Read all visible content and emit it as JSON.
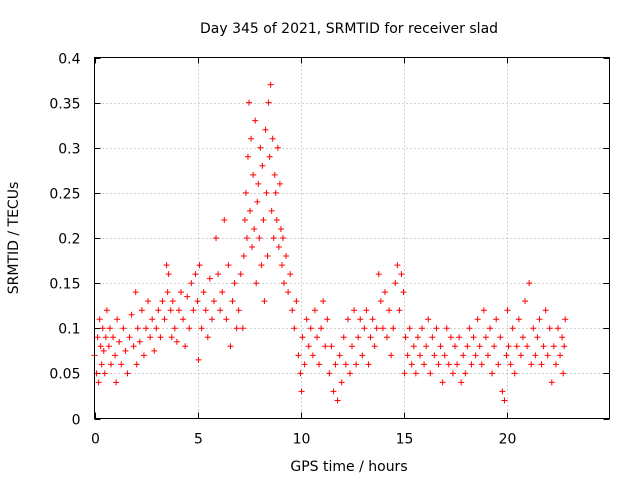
{
  "chart_data": {
    "type": "scatter",
    "title": "Day 345 of 2021, SRMTID for receiver slad",
    "xlabel": "GPS time / hours",
    "ylabel": "SRMTID / TECUs",
    "xlim": [
      0,
      25
    ],
    "ylim": [
      0,
      0.4
    ],
    "xticks": [
      0,
      5,
      10,
      15,
      20
    ],
    "xtick_labels": [
      "0",
      "5",
      "10",
      "15",
      "20"
    ],
    "yticks": [
      0,
      0.05,
      0.1,
      0.15,
      0.2,
      0.25,
      0.3,
      0.35,
      0.4
    ],
    "ytick_labels": [
      "0",
      "0.05",
      "0.1",
      "0.15",
      "0.2",
      "0.25",
      "0.3",
      "0.35",
      "0.4"
    ],
    "grid": true,
    "marker": "+",
    "marker_color": "#ff0000",
    "series": [
      {
        "name": "SRMTID",
        "points": [
          [
            0.0,
            0.07
          ],
          [
            0.1,
            0.05
          ],
          [
            0.15,
            0.09
          ],
          [
            0.2,
            0.04
          ],
          [
            0.25,
            0.11
          ],
          [
            0.3,
            0.08
          ],
          [
            0.35,
            0.06
          ],
          [
            0.4,
            0.1
          ],
          [
            0.45,
            0.075
          ],
          [
            0.5,
            0.05
          ],
          [
            0.55,
            0.09
          ],
          [
            0.6,
            0.12
          ],
          [
            0.7,
            0.08
          ],
          [
            0.75,
            0.1
          ],
          [
            0.8,
            0.06
          ],
          [
            0.9,
            0.09
          ],
          [
            1.0,
            0.07
          ],
          [
            1.05,
            0.04
          ],
          [
            1.1,
            0.11
          ],
          [
            1.2,
            0.085
          ],
          [
            1.3,
            0.06
          ],
          [
            1.4,
            0.1
          ],
          [
            1.5,
            0.075
          ],
          [
            1.6,
            0.05
          ],
          [
            1.7,
            0.09
          ],
          [
            1.8,
            0.115
          ],
          [
            1.9,
            0.08
          ],
          [
            2.0,
            0.14
          ],
          [
            2.05,
            0.06
          ],
          [
            2.1,
            0.1
          ],
          [
            2.2,
            0.085
          ],
          [
            2.3,
            0.12
          ],
          [
            2.4,
            0.07
          ],
          [
            2.5,
            0.1
          ],
          [
            2.6,
            0.13
          ],
          [
            2.7,
            0.09
          ],
          [
            2.8,
            0.11
          ],
          [
            2.9,
            0.075
          ],
          [
            3.0,
            0.1
          ],
          [
            3.1,
            0.12
          ],
          [
            3.2,
            0.09
          ],
          [
            3.3,
            0.13
          ],
          [
            3.4,
            0.11
          ],
          [
            3.5,
            0.17
          ],
          [
            3.55,
            0.14
          ],
          [
            3.6,
            0.16
          ],
          [
            3.7,
            0.12
          ],
          [
            3.75,
            0.09
          ],
          [
            3.8,
            0.13
          ],
          [
            3.9,
            0.1
          ],
          [
            4.0,
            0.085
          ],
          [
            4.1,
            0.12
          ],
          [
            4.2,
            0.14
          ],
          [
            4.3,
            0.11
          ],
          [
            4.4,
            0.08
          ],
          [
            4.5,
            0.135
          ],
          [
            4.6,
            0.1
          ],
          [
            4.7,
            0.15
          ],
          [
            4.8,
            0.12
          ],
          [
            4.9,
            0.16
          ],
          [
            5.0,
            0.13
          ],
          [
            5.05,
            0.065
          ],
          [
            5.1,
            0.17
          ],
          [
            5.2,
            0.1
          ],
          [
            5.3,
            0.14
          ],
          [
            5.4,
            0.12
          ],
          [
            5.5,
            0.09
          ],
          [
            5.6,
            0.155
          ],
          [
            5.7,
            0.11
          ],
          [
            5.8,
            0.13
          ],
          [
            5.9,
            0.2
          ],
          [
            6.0,
            0.16
          ],
          [
            6.1,
            0.12
          ],
          [
            6.2,
            0.14
          ],
          [
            6.3,
            0.22
          ],
          [
            6.4,
            0.11
          ],
          [
            6.5,
            0.17
          ],
          [
            6.6,
            0.08
          ],
          [
            6.7,
            0.13
          ],
          [
            6.8,
            0.15
          ],
          [
            6.9,
            0.1
          ],
          [
            7.0,
            0.12
          ],
          [
            7.1,
            0.16
          ],
          [
            7.2,
            0.1
          ],
          [
            7.25,
            0.18
          ],
          [
            7.3,
            0.22
          ],
          [
            7.35,
            0.25
          ],
          [
            7.4,
            0.2
          ],
          [
            7.45,
            0.29
          ],
          [
            7.5,
            0.35
          ],
          [
            7.55,
            0.23
          ],
          [
            7.6,
            0.31
          ],
          [
            7.65,
            0.19
          ],
          [
            7.7,
            0.27
          ],
          [
            7.75,
            0.21
          ],
          [
            7.8,
            0.33
          ],
          [
            7.85,
            0.15
          ],
          [
            7.9,
            0.24
          ],
          [
            7.95,
            0.26
          ],
          [
            8.0,
            0.2
          ],
          [
            8.05,
            0.3
          ],
          [
            8.1,
            0.17
          ],
          [
            8.15,
            0.28
          ],
          [
            8.2,
            0.22
          ],
          [
            8.25,
            0.13
          ],
          [
            8.3,
            0.32
          ],
          [
            8.35,
            0.25
          ],
          [
            8.4,
            0.18
          ],
          [
            8.45,
            0.35
          ],
          [
            8.5,
            0.29
          ],
          [
            8.55,
            0.37
          ],
          [
            8.6,
            0.23
          ],
          [
            8.65,
            0.31
          ],
          [
            8.7,
            0.2
          ],
          [
            8.75,
            0.27
          ],
          [
            8.8,
            0.25
          ],
          [
            8.85,
            0.22
          ],
          [
            8.9,
            0.3
          ],
          [
            8.95,
            0.19
          ],
          [
            9.0,
            0.26
          ],
          [
            9.05,
            0.21
          ],
          [
            9.1,
            0.17
          ],
          [
            9.15,
            0.2
          ],
          [
            9.2,
            0.15
          ],
          [
            9.3,
            0.18
          ],
          [
            9.4,
            0.14
          ],
          [
            9.5,
            0.16
          ],
          [
            9.6,
            0.12
          ],
          [
            9.7,
            0.1
          ],
          [
            9.8,
            0.13
          ],
          [
            9.9,
            0.07
          ],
          [
            10.0,
            0.05
          ],
          [
            10.05,
            0.03
          ],
          [
            10.1,
            0.09
          ],
          [
            10.2,
            0.06
          ],
          [
            10.3,
            0.11
          ],
          [
            10.4,
            0.08
          ],
          [
            10.5,
            0.1
          ],
          [
            10.6,
            0.07
          ],
          [
            10.7,
            0.12
          ],
          [
            10.8,
            0.09
          ],
          [
            10.9,
            0.06
          ],
          [
            11.0,
            0.1
          ],
          [
            11.1,
            0.13
          ],
          [
            11.2,
            0.08
          ],
          [
            11.3,
            0.11
          ],
          [
            11.4,
            0.05
          ],
          [
            11.5,
            0.08
          ],
          [
            11.6,
            0.03
          ],
          [
            11.7,
            0.06
          ],
          [
            11.8,
            0.02
          ],
          [
            11.9,
            0.07
          ],
          [
            12.0,
            0.04
          ],
          [
            12.1,
            0.09
          ],
          [
            12.2,
            0.06
          ],
          [
            12.3,
            0.11
          ],
          [
            12.4,
            0.05
          ],
          [
            12.5,
            0.08
          ],
          [
            12.6,
            0.12
          ],
          [
            12.7,
            0.06
          ],
          [
            12.8,
            0.09
          ],
          [
            12.9,
            0.11
          ],
          [
            13.0,
            0.07
          ],
          [
            13.1,
            0.1
          ],
          [
            13.2,
            0.12
          ],
          [
            13.3,
            0.06
          ],
          [
            13.4,
            0.09
          ],
          [
            13.5,
            0.11
          ],
          [
            13.6,
            0.08
          ],
          [
            13.7,
            0.1
          ],
          [
            13.8,
            0.16
          ],
          [
            13.9,
            0.13
          ],
          [
            14.0,
            0.1
          ],
          [
            14.1,
            0.14
          ],
          [
            14.2,
            0.09
          ],
          [
            14.3,
            0.12
          ],
          [
            14.4,
            0.07
          ],
          [
            14.5,
            0.1
          ],
          [
            14.6,
            0.15
          ],
          [
            14.7,
            0.17
          ],
          [
            14.8,
            0.12
          ],
          [
            14.9,
            0.16
          ],
          [
            15.0,
            0.14
          ],
          [
            15.05,
            0.05
          ],
          [
            15.1,
            0.09
          ],
          [
            15.2,
            0.07
          ],
          [
            15.3,
            0.1
          ],
          [
            15.4,
            0.06
          ],
          [
            15.5,
            0.08
          ],
          [
            15.6,
            0.05
          ],
          [
            15.7,
            0.09
          ],
          [
            15.8,
            0.07
          ],
          [
            15.9,
            0.1
          ],
          [
            16.0,
            0.06
          ],
          [
            16.1,
            0.08
          ],
          [
            16.2,
            0.11
          ],
          [
            16.3,
            0.05
          ],
          [
            16.4,
            0.09
          ],
          [
            16.5,
            0.07
          ],
          [
            16.6,
            0.1
          ],
          [
            16.7,
            0.06
          ],
          [
            16.8,
            0.08
          ],
          [
            16.9,
            0.04
          ],
          [
            17.0,
            0.07
          ],
          [
            17.1,
            0.1
          ],
          [
            17.2,
            0.06
          ],
          [
            17.3,
            0.09
          ],
          [
            17.4,
            0.05
          ],
          [
            17.5,
            0.08
          ],
          [
            17.6,
            0.06
          ],
          [
            17.7,
            0.09
          ],
          [
            17.8,
            0.04
          ],
          [
            17.9,
            0.07
          ],
          [
            18.0,
            0.05
          ],
          [
            18.1,
            0.08
          ],
          [
            18.2,
            0.1
          ],
          [
            18.3,
            0.06
          ],
          [
            18.4,
            0.09
          ],
          [
            18.5,
            0.07
          ],
          [
            18.6,
            0.11
          ],
          [
            18.7,
            0.08
          ],
          [
            18.8,
            0.06
          ],
          [
            18.9,
            0.12
          ],
          [
            19.0,
            0.09
          ],
          [
            19.1,
            0.07
          ],
          [
            19.2,
            0.1
          ],
          [
            19.3,
            0.05
          ],
          [
            19.4,
            0.08
          ],
          [
            19.5,
            0.11
          ],
          [
            19.6,
            0.06
          ],
          [
            19.7,
            0.09
          ],
          [
            19.8,
            0.03
          ],
          [
            19.9,
            0.02
          ],
          [
            20.0,
            0.07
          ],
          [
            20.05,
            0.12
          ],
          [
            20.1,
            0.08
          ],
          [
            20.2,
            0.06
          ],
          [
            20.3,
            0.1
          ],
          [
            20.4,
            0.05
          ],
          [
            20.5,
            0.08
          ],
          [
            20.6,
            0.11
          ],
          [
            20.7,
            0.07
          ],
          [
            20.8,
            0.09
          ],
          [
            20.9,
            0.13
          ],
          [
            21.0,
            0.08
          ],
          [
            21.1,
            0.15
          ],
          [
            21.2,
            0.06
          ],
          [
            21.3,
            0.1
          ],
          [
            21.4,
            0.07
          ],
          [
            21.5,
            0.09
          ],
          [
            21.6,
            0.11
          ],
          [
            21.7,
            0.06
          ],
          [
            21.8,
            0.08
          ],
          [
            21.9,
            0.12
          ],
          [
            22.0,
            0.07
          ],
          [
            22.1,
            0.1
          ],
          [
            22.2,
            0.04
          ],
          [
            22.3,
            0.08
          ],
          [
            22.4,
            0.06
          ],
          [
            22.5,
            0.1
          ],
          [
            22.6,
            0.07
          ],
          [
            22.7,
            0.09
          ],
          [
            22.75,
            0.05
          ],
          [
            22.8,
            0.08
          ],
          [
            22.85,
            0.11
          ]
        ]
      }
    ]
  }
}
